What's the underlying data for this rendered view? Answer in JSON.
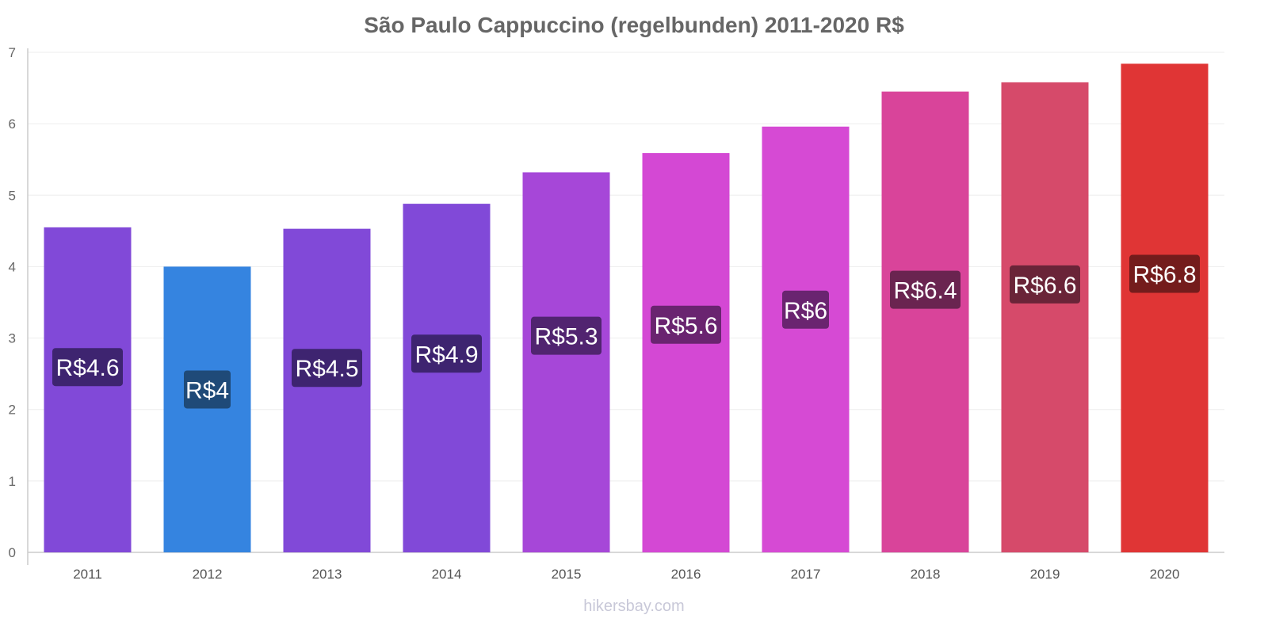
{
  "chart_data": {
    "type": "bar",
    "title": "São Paulo Cappuccino (regelbunden) 2011-2020 R$",
    "xlabel": "",
    "ylabel": "",
    "ylim": [
      0,
      7
    ],
    "yticks": [
      "0",
      "1",
      "2",
      "3",
      "4",
      "5",
      "6",
      "7"
    ],
    "grid": true,
    "categories": [
      "2011",
      "2012",
      "2013",
      "2014",
      "2015",
      "2016",
      "2017",
      "2018",
      "2019",
      "2020"
    ],
    "values": [
      4.55,
      4.0,
      4.53,
      4.88,
      5.32,
      5.59,
      5.96,
      6.45,
      6.58,
      6.84
    ],
    "data_labels": [
      "R$4.6",
      "R$4",
      "R$4.5",
      "R$4.9",
      "R$5.3",
      "R$5.6",
      "R$6",
      "R$6.4",
      "R$6.6",
      "R$6.8"
    ],
    "bar_colors": [
      "#8149d8",
      "#3584e0",
      "#8149d8",
      "#8149d8",
      "#a647d8",
      "#d448d4",
      "#d64ad4",
      "#d9449a",
      "#d64a6a",
      "#e03535"
    ],
    "label_colors": [
      "#3e2470",
      "#1f4a78",
      "#3e2470",
      "#3e2470",
      "#512470",
      "#6a2470",
      "#6a2470",
      "#6a2450",
      "#6a2438",
      "#741c1c"
    ]
  },
  "watermark": "hikersbay.com"
}
